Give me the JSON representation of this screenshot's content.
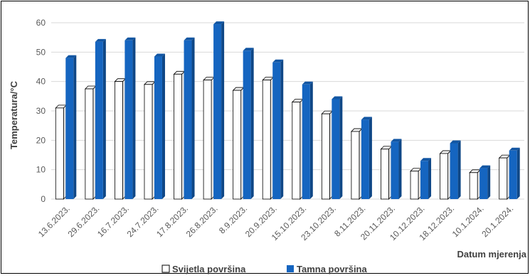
{
  "chart_data": {
    "type": "bar",
    "xlabel": "Datum mjerenja",
    "ylabel": "Temperatura/°C",
    "ylim": [
      0,
      60
    ],
    "yticks": [
      0,
      10,
      20,
      30,
      40,
      50,
      60
    ],
    "grid": true,
    "legend_position": "bottom",
    "categories": [
      "13.6.2023.",
      "29.6.2023.",
      "16.7.2023.",
      "24.7.2023.",
      "17.8.2023.",
      "26.8.2023.",
      "8.9.2023.",
      "20.9.2023.",
      "15.10.2023.",
      "23.10.2023.",
      "8.11.2023.",
      "20.11.2023.",
      "10.12.2023.",
      "18.12.2023.",
      "10.1.2024.",
      "20.1.2024."
    ],
    "series": [
      {
        "name": "Svijetla površina",
        "color": "#ffffff",
        "values": [
          31,
          37.5,
          40,
          39,
          42.5,
          40.5,
          37,
          40.5,
          33,
          29,
          23,
          17,
          9.5,
          15.5,
          9,
          14
        ]
      },
      {
        "name": "Tamna površina",
        "color": "#1565c0",
        "values": [
          48,
          53.5,
          54,
          48.5,
          54,
          59.5,
          50.5,
          46.5,
          39,
          34,
          27,
          19.5,
          13,
          19,
          10.5,
          16.5
        ]
      }
    ]
  }
}
